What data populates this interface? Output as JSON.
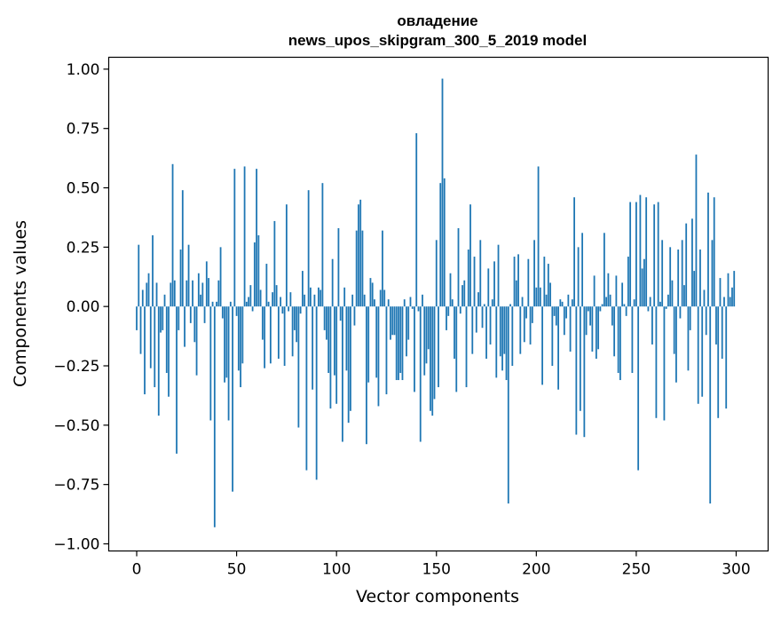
{
  "chart_data": {
    "type": "bar",
    "title": "овладение",
    "subtitle": "news_upos_skipgram_300_5_2019 model",
    "xlabel": "Vector components",
    "ylabel": "Components values",
    "xlim": [
      -14,
      316
    ],
    "ylim": [
      -1.03,
      1.05
    ],
    "x_ticks": [
      0,
      50,
      100,
      150,
      200,
      250,
      300
    ],
    "x_tick_labels": [
      "0",
      "50",
      "100",
      "150",
      "200",
      "250",
      "300"
    ],
    "y_ticks": [
      1.0,
      0.75,
      0.5,
      0.25,
      0.0,
      -0.25,
      -0.5,
      -0.75,
      -1.0
    ],
    "y_tick_labels": [
      "1.00",
      "0.75",
      "0.50",
      "0.25",
      "0.00",
      "−0.25",
      "−0.50",
      "−0.75",
      "−1.00"
    ],
    "bar_color": "#1f77b4",
    "grid": false,
    "legend": "none",
    "x_start": 0,
    "values": [
      -0.1,
      0.26,
      -0.2,
      0.07,
      -0.37,
      0.1,
      0.14,
      -0.26,
      0.3,
      -0.34,
      0.1,
      -0.46,
      -0.11,
      -0.1,
      0.05,
      -0.28,
      -0.38,
      0.1,
      0.6,
      0.11,
      -0.62,
      -0.1,
      0.24,
      0.49,
      -0.17,
      0.11,
      0.26,
      -0.07,
      0.11,
      -0.15,
      -0.29,
      0.14,
      0.05,
      0.1,
      -0.07,
      0.19,
      0.12,
      -0.48,
      0.02,
      -0.93,
      0.02,
      0.11,
      0.25,
      -0.05,
      -0.32,
      -0.3,
      -0.48,
      0.02,
      -0.78,
      0.58,
      -0.04,
      -0.27,
      -0.34,
      -0.24,
      0.59,
      0.02,
      0.04,
      0.09,
      -0.02,
      0.27,
      0.58,
      0.3,
      0.07,
      -0.14,
      -0.26,
      0.18,
      0.02,
      -0.24,
      0.06,
      0.36,
      0.09,
      -0.22,
      0.04,
      -0.03,
      -0.25,
      0.43,
      -0.02,
      0.06,
      -0.21,
      -0.1,
      -0.15,
      -0.51,
      -0.03,
      0.15,
      0.05,
      -0.69,
      0.49,
      0.08,
      -0.35,
      0.05,
      -0.73,
      0.08,
      0.07,
      0.52,
      -0.1,
      -0.14,
      -0.28,
      -0.43,
      0.2,
      -0.29,
      -0.41,
      0.33,
      -0.06,
      -0.57,
      0.08,
      -0.27,
      -0.49,
      -0.44,
      0.05,
      -0.08,
      0.32,
      0.43,
      0.45,
      0.32,
      0.05,
      -0.58,
      -0.32,
      0.12,
      0.1,
      0.03,
      -0.3,
      -0.42,
      0.07,
      0.32,
      0.07,
      -0.37,
      0.03,
      -0.14,
      -0.12,
      -0.12,
      -0.31,
      -0.31,
      -0.28,
      -0.31,
      0.03,
      -0.21,
      -0.14,
      0.04,
      -0.01,
      -0.36,
      0.73,
      -0.02,
      -0.57,
      0.05,
      -0.29,
      -0.24,
      -0.18,
      -0.44,
      -0.46,
      -0.39,
      0.28,
      -0.34,
      0.52,
      0.96,
      0.54,
      -0.1,
      -0.04,
      0.14,
      0.03,
      -0.22,
      -0.36,
      0.33,
      -0.03,
      0.09,
      0.11,
      -0.34,
      0.24,
      0.43,
      -0.2,
      0.21,
      -0.11,
      0.06,
      0.28,
      -0.09,
      0.01,
      -0.22,
      0.16,
      -0.16,
      0.03,
      0.19,
      -0.3,
      0.26,
      -0.21,
      -0.27,
      -0.2,
      -0.31,
      -0.83,
      0.01,
      -0.25,
      0.21,
      0.11,
      0.22,
      -0.2,
      0.04,
      -0.15,
      -0.05,
      0.2,
      -0.16,
      -0.07,
      0.28,
      0.08,
      0.59,
      0.08,
      -0.33,
      0.21,
      0.05,
      0.18,
      0.1,
      -0.25,
      -0.04,
      -0.08,
      -0.35,
      0.03,
      0.02,
      -0.12,
      -0.05,
      0.05,
      -0.19,
      0.03,
      0.46,
      -0.54,
      0.25,
      -0.44,
      0.31,
      -0.55,
      -0.12,
      -0.02,
      -0.08,
      -0.19,
      0.13,
      -0.22,
      -0.18,
      -0.02,
      0.01,
      0.31,
      0.04,
      0.14,
      0.05,
      -0.08,
      -0.21,
      0.13,
      -0.28,
      -0.31,
      0.1,
      0.01,
      -0.04,
      0.21,
      0.44,
      -0.28,
      0.03,
      0.44,
      -0.69,
      0.47,
      0.16,
      0.2,
      0.46,
      -0.02,
      0.04,
      -0.16,
      0.43,
      -0.47,
      0.44,
      0.02,
      0.28,
      -0.48,
      -0.01,
      0.05,
      0.25,
      0.11,
      -0.2,
      -0.32,
      0.24,
      -0.05,
      0.28,
      0.09,
      0.35,
      -0.27,
      -0.1,
      0.37,
      0.15,
      0.64,
      -0.41,
      0.24,
      -0.38,
      0.07,
      -0.12,
      0.48,
      -0.83,
      0.28,
      0.46,
      -0.16,
      -0.47,
      0.12,
      -0.22,
      0.04,
      -0.43,
      0.14,
      0.04,
      0.08,
      0.15
    ]
  }
}
